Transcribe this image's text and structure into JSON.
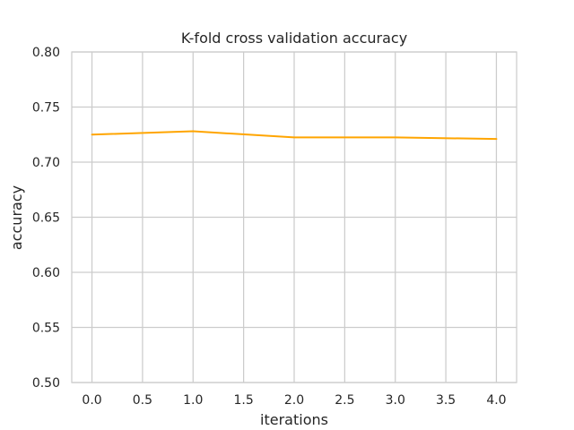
{
  "chart_data": {
    "type": "line",
    "title": "K-fold cross validation accuracy",
    "xlabel": "iterations",
    "ylabel": "accuracy",
    "xlim": [
      -0.2,
      4.2
    ],
    "ylim": [
      0.5,
      0.8
    ],
    "x_ticks": [
      0.0,
      0.5,
      1.0,
      1.5,
      2.0,
      2.5,
      3.0,
      3.5,
      4.0
    ],
    "x_tick_labels": [
      "0.0",
      "0.5",
      "1.0",
      "1.5",
      "2.0",
      "2.5",
      "3.0",
      "3.5",
      "4.0"
    ],
    "y_ticks": [
      0.5,
      0.55,
      0.6,
      0.65,
      0.7,
      0.75,
      0.8
    ],
    "y_tick_labels": [
      "0.50",
      "0.55",
      "0.60",
      "0.65",
      "0.70",
      "0.75",
      "0.80"
    ],
    "grid": true,
    "series": [
      {
        "color": "#ffa500",
        "x": [
          0,
          1,
          2,
          3,
          4
        ],
        "y": [
          0.725,
          0.728,
          0.7225,
          0.7225,
          0.721
        ]
      }
    ]
  }
}
